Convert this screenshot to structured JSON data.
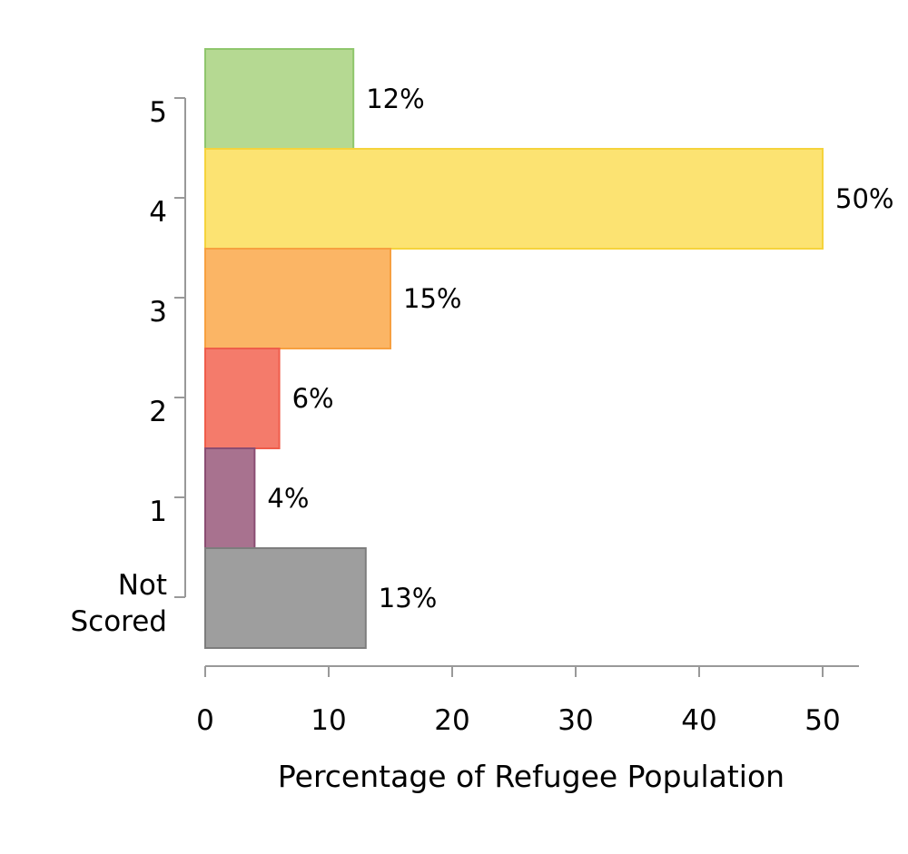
{
  "chart_data": {
    "type": "bar",
    "orientation": "horizontal",
    "categories": [
      "5",
      "4",
      "3",
      "2",
      "1",
      "Not Scored"
    ],
    "values": [
      12,
      50,
      15,
      6,
      4,
      13
    ],
    "value_labels": [
      "12%",
      "50%",
      "15%",
      "6%",
      "4%",
      "13%"
    ],
    "colors": [
      "#b5d992",
      "#fce372",
      "#fbb565",
      "#f47b6b",
      "#a8728f",
      "#9e9e9e"
    ],
    "edge_colors": [
      "#8fc66c",
      "#f5d33c",
      "#f7a040",
      "#ef5d4b",
      "#8a4d72",
      "#7d7d7d"
    ],
    "xlabel": "Percentage of Refugee Population",
    "ylabel": "",
    "x_ticks": [
      "0",
      "10",
      "20",
      "30",
      "40",
      "50"
    ],
    "xlim": [
      0,
      53
    ],
    "grid": false,
    "legend": "none"
  }
}
